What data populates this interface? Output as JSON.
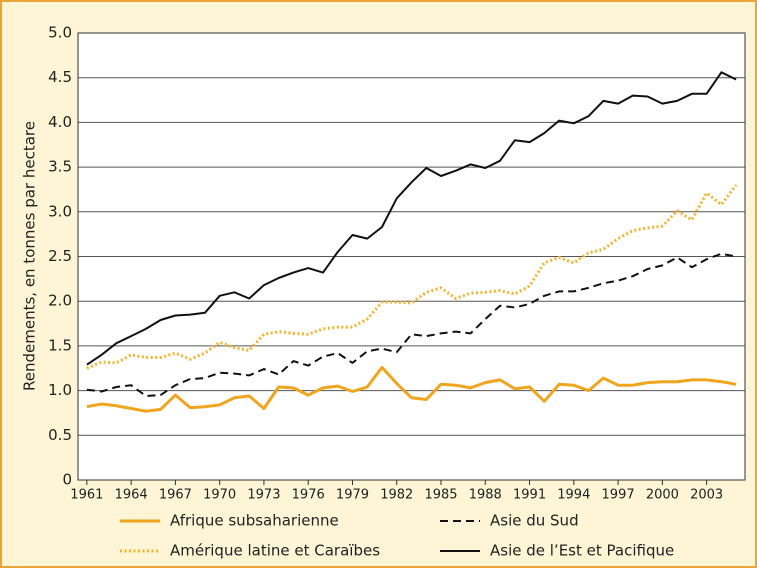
{
  "chart_data": {
    "type": "line",
    "y_label": "Rendements, en tonnes par hectare",
    "x": [
      1961,
      1962,
      1963,
      1964,
      1965,
      1966,
      1967,
      1968,
      1969,
      1970,
      1971,
      1972,
      1973,
      1974,
      1975,
      1976,
      1977,
      1978,
      1979,
      1980,
      1981,
      1982,
      1983,
      1984,
      1985,
      1986,
      1987,
      1988,
      1989,
      1990,
      1991,
      1992,
      1993,
      1994,
      1995,
      1996,
      1997,
      1998,
      1999,
      2000,
      2001,
      2002,
      2003,
      2004,
      2005
    ],
    "xlim": [
      1960.4,
      2005.6
    ],
    "xticks": [
      1961,
      1964,
      1967,
      1970,
      1973,
      1976,
      1979,
      1982,
      1985,
      1988,
      1991,
      1994,
      1997,
      2000,
      2003
    ],
    "ylim": [
      0,
      5
    ],
    "yticks": [
      0,
      0.5,
      {
        "value": 1,
        "label": "1.0"
      },
      1.5,
      {
        "value": 2,
        "label": "2.0"
      },
      2.5,
      {
        "value": 3,
        "label": "3.0"
      },
      3.5,
      {
        "value": 4,
        "label": "4.0"
      },
      4.5,
      {
        "value": 5,
        "label": "5.0"
      }
    ],
    "grid": true,
    "series": [
      {
        "name": "Afrique subsaharienne",
        "color": "#f0a51e",
        "line_style": "solid",
        "values": [
          0.82,
          0.85,
          0.83,
          0.8,
          0.77,
          0.79,
          0.95,
          0.81,
          0.82,
          0.84,
          0.92,
          0.94,
          0.8,
          1.04,
          1.03,
          0.95,
          1.03,
          1.05,
          0.99,
          1.04,
          1.26,
          1.08,
          0.92,
          0.9,
          1.07,
          1.06,
          1.03,
          1.09,
          1.12,
          1.02,
          1.04,
          0.88,
          1.07,
          1.06,
          1.0,
          1.14,
          1.06,
          1.06,
          1.09,
          1.1,
          1.1,
          1.12,
          1.12,
          1.1,
          1.07
        ]
      },
      {
        "name": "Amérique latine et Caraïbes",
        "color": "#f2b42a",
        "line_style": "dotted",
        "values": [
          1.25,
          1.32,
          1.31,
          1.4,
          1.37,
          1.37,
          1.42,
          1.35,
          1.42,
          1.54,
          1.48,
          1.45,
          1.63,
          1.66,
          1.64,
          1.63,
          1.69,
          1.71,
          1.71,
          1.8,
          1.99,
          1.99,
          1.98,
          2.1,
          2.15,
          2.03,
          2.09,
          2.1,
          2.12,
          2.08,
          2.17,
          2.43,
          2.49,
          2.43,
          2.54,
          2.58,
          2.7,
          2.79,
          2.82,
          2.84,
          3.01,
          2.91,
          3.21,
          3.08,
          3.3
        ]
      },
      {
        "name": "Asie du Sud",
        "color": "#111111",
        "line_style": "dashed",
        "values": [
          1.01,
          0.99,
          1.04,
          1.06,
          0.94,
          0.95,
          1.06,
          1.13,
          1.14,
          1.2,
          1.19,
          1.17,
          1.24,
          1.18,
          1.33,
          1.28,
          1.38,
          1.42,
          1.31,
          1.44,
          1.47,
          1.43,
          1.63,
          1.61,
          1.64,
          1.66,
          1.64,
          1.8,
          1.95,
          1.93,
          1.97,
          2.06,
          2.11,
          2.11,
          2.15,
          2.2,
          2.23,
          2.28,
          2.36,
          2.4,
          2.49,
          2.38,
          2.47,
          2.53,
          2.5
        ]
      },
      {
        "name": "Asie de l’Est et Pacifique",
        "color": "#111111",
        "line_style": "solid",
        "values": [
          1.29,
          1.4,
          1.53,
          1.61,
          1.69,
          1.79,
          1.84,
          1.85,
          1.87,
          2.06,
          2.1,
          2.03,
          2.18,
          2.26,
          2.32,
          2.37,
          2.32,
          2.55,
          2.74,
          2.7,
          2.83,
          3.15,
          3.33,
          3.49,
          3.4,
          3.46,
          3.53,
          3.49,
          3.57,
          3.8,
          3.78,
          3.88,
          4.02,
          3.99,
          4.07,
          4.24,
          4.21,
          4.3,
          4.29,
          4.21,
          4.24,
          4.32,
          4.32,
          4.56,
          4.48
        ]
      }
    ]
  }
}
